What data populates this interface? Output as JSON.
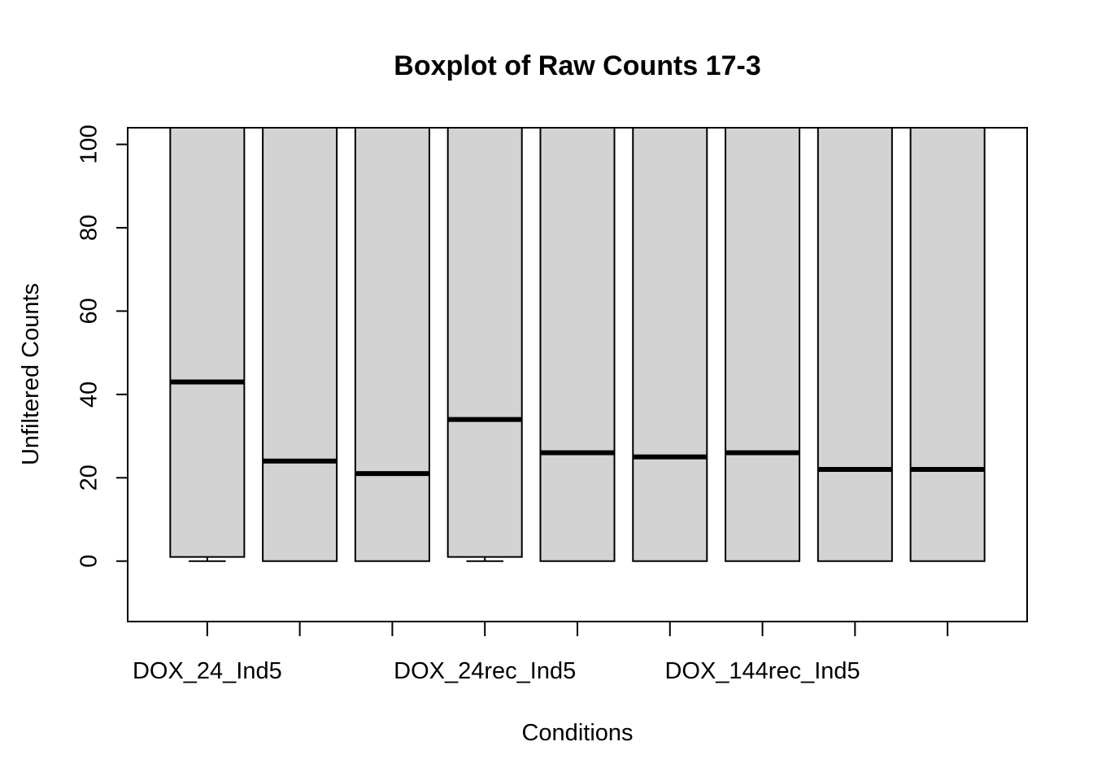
{
  "chart_data": {
    "type": "boxplot",
    "title": "Boxplot of Raw Counts 17-3",
    "xlabel": "Conditions",
    "ylabel": "Unfiltered Counts",
    "ylim": [
      -14.5,
      104
    ],
    "yticks": [
      0,
      20,
      40,
      60,
      80,
      100
    ],
    "categories": [
      "DOX_24_Ind5",
      "",
      "",
      "DOX_24rec_Ind5",
      "",
      "",
      "DOX_144rec_Ind5",
      "",
      ""
    ],
    "boxes": [
      {
        "q1": 1,
        "median": 43,
        "q3": 104,
        "whisker_low": 0
      },
      {
        "q1": 0,
        "median": 24,
        "q3": 104,
        "whisker_low": 0
      },
      {
        "q1": 0,
        "median": 21,
        "q3": 104,
        "whisker_low": 0
      },
      {
        "q1": 1,
        "median": 34,
        "q3": 104,
        "whisker_low": 0
      },
      {
        "q1": 0,
        "median": 26,
        "q3": 104,
        "whisker_low": 0
      },
      {
        "q1": 0,
        "median": 25,
        "q3": 104,
        "whisker_low": 0
      },
      {
        "q1": 0,
        "median": 26,
        "q3": 104,
        "whisker_low": 0
      },
      {
        "q1": 0,
        "median": 22,
        "q3": 104,
        "whisker_low": 0
      },
      {
        "q1": 0,
        "median": 22,
        "q3": 104,
        "whisker_low": 0
      }
    ],
    "box_fill": "#d3d3d3",
    "grid": false,
    "legend": "none"
  }
}
